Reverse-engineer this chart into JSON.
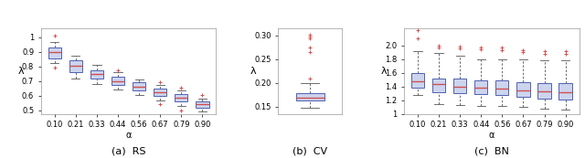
{
  "RS": {
    "alphas": [
      "0.10",
      "0.21",
      "0.33",
      "0.44",
      "0.56",
      "0.67",
      "0.79",
      "0.90"
    ],
    "boxes": [
      {
        "q1": 0.855,
        "med": 0.895,
        "q3": 0.928,
        "whislo": 0.82,
        "whishi": 0.965,
        "fliers_hi": [
          1.01
        ],
        "fliers_lo": [
          0.79
        ]
      },
      {
        "q1": 0.758,
        "med": 0.805,
        "q3": 0.842,
        "whislo": 0.718,
        "whishi": 0.872,
        "fliers_hi": [],
        "fliers_lo": []
      },
      {
        "q1": 0.718,
        "med": 0.745,
        "q3": 0.772,
        "whislo": 0.678,
        "whishi": 0.812,
        "fliers_hi": [],
        "fliers_lo": []
      },
      {
        "q1": 0.672,
        "med": 0.7,
        "q3": 0.732,
        "whislo": 0.642,
        "whishi": 0.758,
        "fliers_hi": [
          0.775
        ],
        "fliers_lo": []
      },
      {
        "q1": 0.635,
        "med": 0.66,
        "q3": 0.692,
        "whislo": 0.605,
        "whishi": 0.712,
        "fliers_hi": [],
        "fliers_lo": []
      },
      {
        "q1": 0.598,
        "med": 0.625,
        "q3": 0.65,
        "whislo": 0.565,
        "whishi": 0.67,
        "fliers_hi": [
          0.69
        ],
        "fliers_lo": [
          0.54
        ]
      },
      {
        "q1": 0.56,
        "med": 0.585,
        "q3": 0.61,
        "whislo": 0.53,
        "whishi": 0.632,
        "fliers_hi": [
          0.655
        ],
        "fliers_lo": [
          0.5
        ]
      },
      {
        "q1": 0.518,
        "med": 0.538,
        "q3": 0.56,
        "whislo": 0.488,
        "whishi": 0.578,
        "fliers_hi": [
          0.605
        ],
        "fliers_lo": []
      }
    ],
    "ylabel": "λ",
    "xlabel": "α",
    "caption": "(a)  RS",
    "ylim": [
      0.475,
      1.06
    ],
    "yticks": [
      0.5,
      0.6,
      0.7,
      0.8,
      0.9,
      1.0
    ]
  },
  "CV": {
    "boxes": [
      {
        "q1": 0.163,
        "med": 0.168,
        "q3": 0.178,
        "whislo": 0.148,
        "whishi": 0.2,
        "fliers_hi": [
          0.21,
          0.265,
          0.275,
          0.295,
          0.298,
          0.301
        ],
        "fliers_lo": []
      }
    ],
    "ylabel": "λ",
    "xlabel": "",
    "caption": "(b)  CV",
    "ylim": [
      0.135,
      0.315
    ],
    "yticks": [
      0.15,
      0.2,
      0.25,
      0.3
    ]
  },
  "BN": {
    "alphas": [
      "0.10",
      "0.21",
      "0.33",
      "0.44",
      "0.56",
      "0.67",
      "0.79",
      "0.90"
    ],
    "boxes": [
      {
        "q1": 1.385,
        "med": 1.48,
        "q3": 1.602,
        "whislo": 1.275,
        "whishi": 1.92,
        "fliers_hi": [
          2.1,
          2.22
        ],
        "fliers_lo": []
      },
      {
        "q1": 1.318,
        "med": 1.435,
        "q3": 1.522,
        "whislo": 1.14,
        "whishi": 1.885,
        "fliers_hi": [
          1.97,
          2.0
        ],
        "fliers_lo": []
      },
      {
        "q1": 1.305,
        "med": 1.398,
        "q3": 1.51,
        "whislo": 1.128,
        "whishi": 1.848,
        "fliers_hi": [
          1.96,
          1.98
        ],
        "fliers_lo": []
      },
      {
        "q1": 1.29,
        "med": 1.378,
        "q3": 1.492,
        "whislo": 1.118,
        "whishi": 1.798,
        "fliers_hi": [
          1.94,
          1.97
        ],
        "fliers_lo": []
      },
      {
        "q1": 1.275,
        "med": 1.368,
        "q3": 1.49,
        "whislo": 1.108,
        "whishi": 1.798,
        "fliers_hi": [
          1.93,
          1.97
        ],
        "fliers_lo": []
      },
      {
        "q1": 1.25,
        "med": 1.338,
        "q3": 1.462,
        "whislo": 1.098,
        "whishi": 1.798,
        "fliers_hi": [
          1.9,
          1.93
        ],
        "fliers_lo": []
      },
      {
        "q1": 1.22,
        "med": 1.328,
        "q3": 1.448,
        "whislo": 1.078,
        "whishi": 1.778,
        "fliers_hi": [
          1.88,
          1.92
        ],
        "fliers_lo": []
      },
      {
        "q1": 1.208,
        "med": 1.318,
        "q3": 1.448,
        "whislo": 1.058,
        "whishi": 1.778,
        "fliers_hi": [
          1.88,
          1.92
        ],
        "fliers_lo": []
      }
    ],
    "ylabel": "λ",
    "xlabel": "α",
    "caption": "(c)  BN",
    "ylim": [
      1.0,
      2.25
    ],
    "yticks": [
      1.0,
      1.2,
      1.4,
      1.6,
      1.8,
      2.0
    ]
  },
  "box_facecolor": "#ccd4ee",
  "box_edgecolor": "#5060b0",
  "median_color": "#d05050",
  "whisker_color": "#555555",
  "flier_color": "#d05050",
  "flier_marker": "+"
}
